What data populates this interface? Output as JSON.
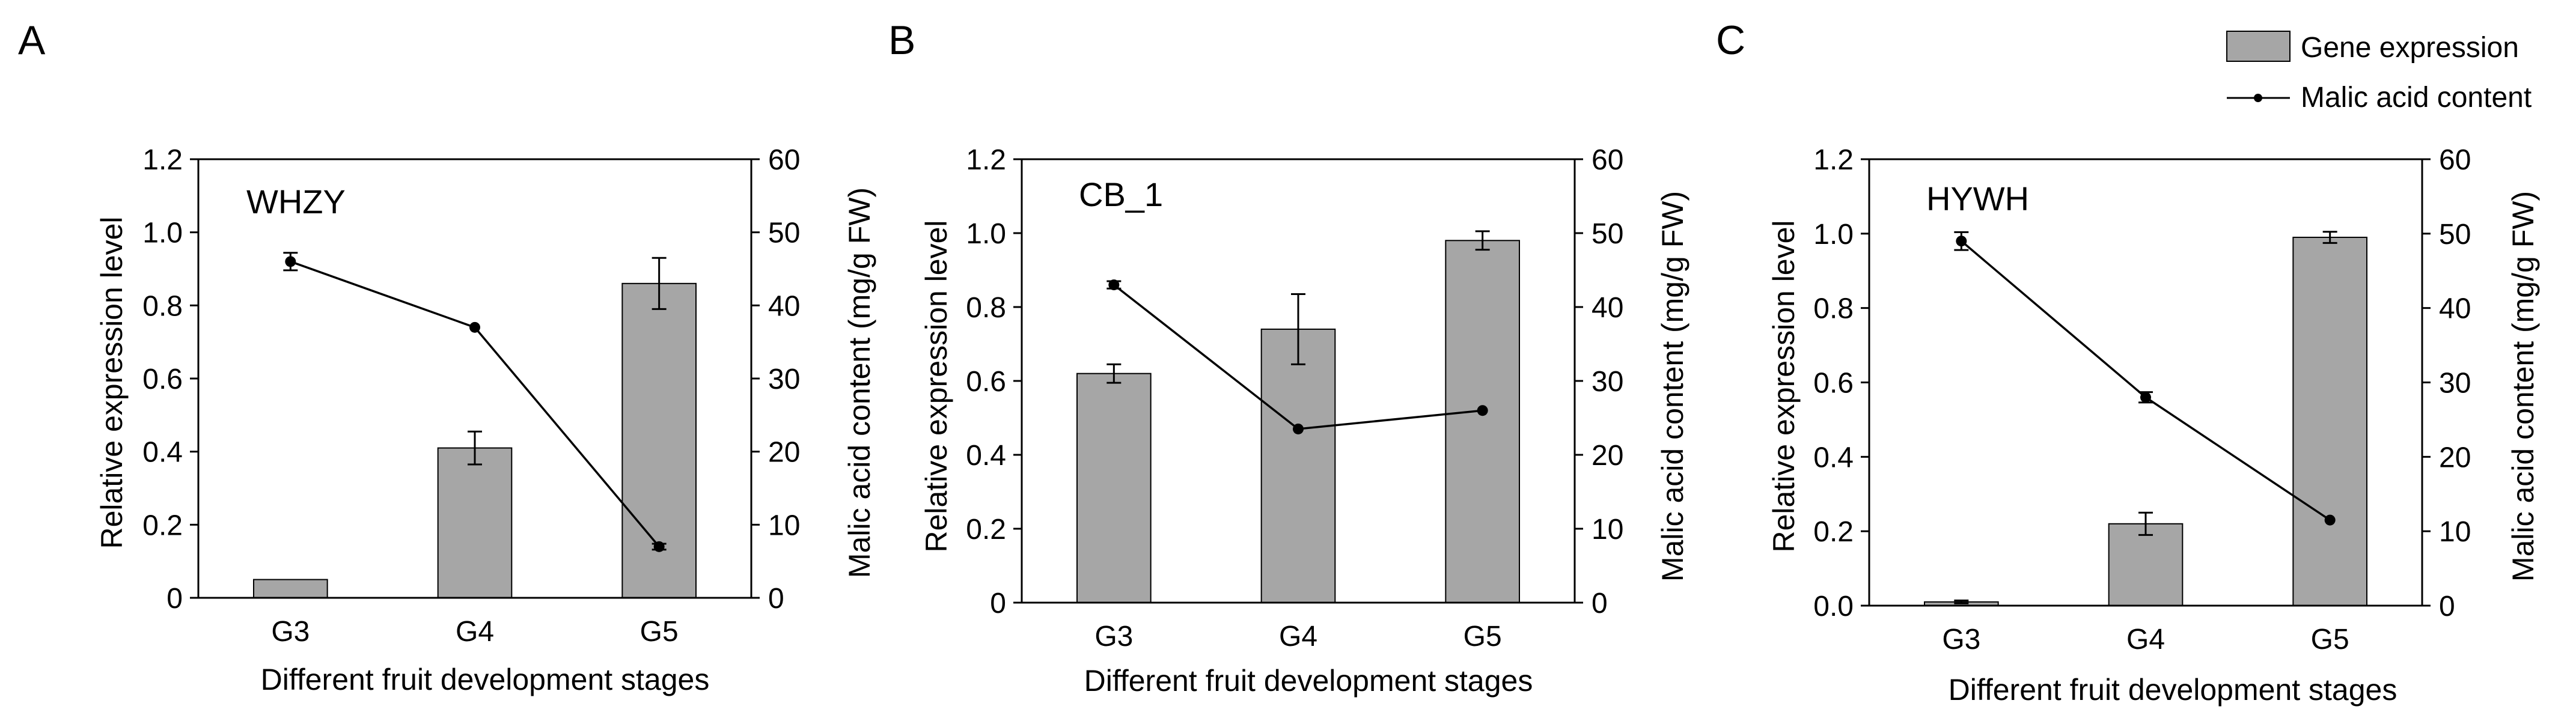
{
  "legend": {
    "bar_label": "Gene expression",
    "line_label": "Malic acid content"
  },
  "chart_data": [
    {
      "type": "bar",
      "panel_letter": "A",
      "title": "WHZY",
      "xlabel": "Different fruit development stages",
      "ylabel": "Relative expression level",
      "y2label": "Malic acid content (mg/g  FW)",
      "categories": [
        "G3",
        "G4",
        "G5"
      ],
      "ylim": [
        0,
        1.2
      ],
      "yticks": [
        "0",
        "0.2",
        "0.4",
        "0.6",
        "0.8",
        "1.0",
        "1.2"
      ],
      "y2lim": [
        0,
        60
      ],
      "y2ticks": [
        "0",
        "10",
        "20",
        "30",
        "40",
        "50",
        "60"
      ],
      "bar_values": [
        0.05,
        0.41,
        0.86
      ],
      "bar_errors": [
        0,
        0.045,
        0.07
      ],
      "line_values": [
        46,
        37,
        7
      ],
      "line_errors": [
        1.2,
        0,
        0.4
      ],
      "colors": {
        "bar": "#a6a6a6",
        "line": "#000000"
      }
    },
    {
      "type": "bar",
      "panel_letter": "B",
      "title": "CB_1",
      "xlabel": "Different fruit development stages",
      "ylabel": "Relative expression level",
      "y2label": "Malic acid content (mg/g FW)",
      "categories": [
        "G3",
        "G4",
        "G5"
      ],
      "ylim": [
        0,
        1.2
      ],
      "yticks": [
        "0",
        "0.2",
        "0.4",
        "0.6",
        "0.8",
        "1.0",
        "1.2"
      ],
      "y2lim": [
        0,
        60
      ],
      "y2ticks": [
        "0",
        "10",
        "20",
        "30",
        "40",
        "50",
        "60"
      ],
      "bar_values": [
        0.62,
        0.74,
        0.98
      ],
      "bar_errors": [
        0.025,
        0.095,
        0.025
      ],
      "line_values": [
        43,
        23.5,
        26
      ],
      "line_errors": [
        0.5,
        0,
        0
      ],
      "colors": {
        "bar": "#a6a6a6",
        "line": "#000000"
      }
    },
    {
      "type": "bar",
      "panel_letter": "C",
      "title": "HYWH",
      "xlabel": "Different fruit development stages",
      "ylabel": "Relative expression level",
      "y2label": "Malic acid content (mg/g FW)",
      "categories": [
        "G3",
        "G4",
        "G5"
      ],
      "ylim": [
        0,
        1.2
      ],
      "yticks": [
        "0.0",
        "0.2",
        "0.4",
        "0.6",
        "0.8",
        "1.0",
        "1.2"
      ],
      "y2lim": [
        0,
        60
      ],
      "y2ticks": [
        "0",
        "10",
        "20",
        "30",
        "40",
        "50",
        "60"
      ],
      "bar_values": [
        0.01,
        0.22,
        0.99
      ],
      "bar_errors": [
        0.004,
        0.03,
        0.015
      ],
      "line_values": [
        49,
        28,
        11.5
      ],
      "line_errors": [
        1.2,
        0.7,
        0
      ],
      "colors": {
        "bar": "#a6a6a6",
        "line": "#000000"
      }
    }
  ]
}
